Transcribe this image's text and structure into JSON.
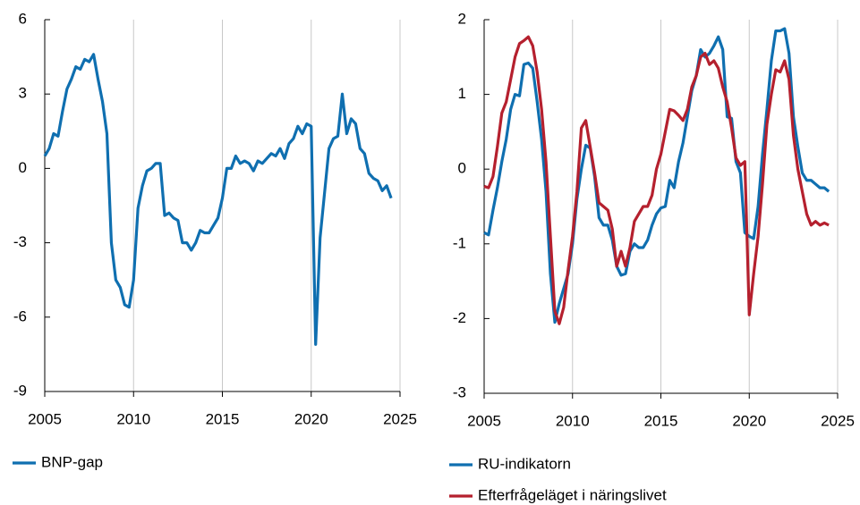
{
  "chart_data": [
    {
      "type": "line",
      "x": [
        2005,
        2005.25,
        2005.5,
        2005.75,
        2006,
        2006.25,
        2006.5,
        2006.75,
        2007,
        2007.25,
        2007.5,
        2007.75,
        2008,
        2008.25,
        2008.5,
        2008.75,
        2009,
        2009.25,
        2009.5,
        2009.75,
        2010,
        2010.25,
        2010.5,
        2010.75,
        2011,
        2011.25,
        2011.5,
        2011.75,
        2012,
        2012.25,
        2012.5,
        2012.75,
        2013,
        2013.25,
        2013.5,
        2013.75,
        2014,
        2014.25,
        2014.5,
        2014.75,
        2015,
        2015.25,
        2015.5,
        2015.75,
        2016,
        2016.25,
        2016.5,
        2016.75,
        2017,
        2017.25,
        2017.5,
        2017.75,
        2018,
        2018.25,
        2018.5,
        2018.75,
        2019,
        2019.25,
        2019.5,
        2019.75,
        2020,
        2020.25,
        2020.5,
        2020.75,
        2021,
        2021.25,
        2021.5,
        2021.75,
        2022,
        2022.25,
        2022.5,
        2022.75,
        2023,
        2023.25,
        2023.5,
        2023.75,
        2024,
        2024.25,
        2024.5
      ],
      "series": [
        {
          "name": "BNP-gap",
          "color": "#0f6fb0",
          "values": [
            0.5,
            0.8,
            1.4,
            1.3,
            2.3,
            3.2,
            3.6,
            4.1,
            4.0,
            4.4,
            4.3,
            4.6,
            3.6,
            2.7,
            1.4,
            -3.0,
            -4.5,
            -4.8,
            -5.5,
            -5.6,
            -4.5,
            -1.6,
            -0.7,
            -0.1,
            0.0,
            0.2,
            0.2,
            -1.9,
            -1.8,
            -2.0,
            -2.1,
            -3.0,
            -3.0,
            -3.3,
            -3.0,
            -2.5,
            -2.6,
            -2.6,
            -2.3,
            -2.0,
            -1.2,
            0.0,
            0.0,
            0.5,
            0.2,
            0.3,
            0.2,
            -0.1,
            0.3,
            0.2,
            0.4,
            0.6,
            0.5,
            0.8,
            0.4,
            1.0,
            1.2,
            1.7,
            1.4,
            1.8,
            1.7,
            -7.1,
            -2.8,
            -1.0,
            0.8,
            1.2,
            1.3,
            3.0,
            1.4,
            2.0,
            1.8,
            0.8,
            0.6,
            -0.2,
            -0.4,
            -0.5,
            -0.9,
            -0.7,
            -1.2
          ]
        }
      ],
      "xlim": [
        2005,
        2025
      ],
      "xticks": [
        2005,
        2010,
        2015,
        2020,
        2025
      ],
      "ylim": [
        -9,
        6
      ],
      "yticks": [
        -9,
        -6,
        -3,
        0,
        3,
        6
      ],
      "grid": true
    },
    {
      "type": "line",
      "x": [
        2005,
        2005.25,
        2005.5,
        2005.75,
        2006,
        2006.25,
        2006.5,
        2006.75,
        2007,
        2007.25,
        2007.5,
        2007.75,
        2008,
        2008.25,
        2008.5,
        2008.75,
        2009,
        2009.25,
        2009.5,
        2009.75,
        2010,
        2010.25,
        2010.5,
        2010.75,
        2011,
        2011.25,
        2011.5,
        2011.75,
        2012,
        2012.25,
        2012.5,
        2012.75,
        2013,
        2013.25,
        2013.5,
        2013.75,
        2014,
        2014.25,
        2014.5,
        2014.75,
        2015,
        2015.25,
        2015.5,
        2015.75,
        2016,
        2016.25,
        2016.5,
        2016.75,
        2017,
        2017.25,
        2017.5,
        2017.75,
        2018,
        2018.25,
        2018.5,
        2018.75,
        2019,
        2019.25,
        2019.5,
        2019.75,
        2020,
        2020.25,
        2020.5,
        2020.75,
        2021,
        2021.25,
        2021.5,
        2021.75,
        2022,
        2022.25,
        2022.5,
        2022.75,
        2023,
        2023.25,
        2023.5,
        2023.75,
        2024,
        2024.25,
        2024.5
      ],
      "series": [
        {
          "name": "RU-indikatorn",
          "color": "#0f6fb0",
          "values": [
            -0.85,
            -0.88,
            -0.55,
            -0.25,
            0.1,
            0.4,
            0.8,
            1.0,
            0.98,
            1.4,
            1.42,
            1.35,
            0.9,
            0.4,
            -0.3,
            -1.4,
            -2.05,
            -1.8,
            -1.6,
            -1.4,
            -1.0,
            -0.4,
            0.0,
            0.32,
            0.28,
            -0.1,
            -0.65,
            -0.75,
            -0.75,
            -0.95,
            -1.3,
            -1.42,
            -1.4,
            -1.1,
            -1.0,
            -1.05,
            -1.05,
            -0.95,
            -0.75,
            -0.6,
            -0.52,
            -0.5,
            -0.15,
            -0.25,
            0.1,
            0.35,
            0.7,
            1.05,
            1.25,
            1.6,
            1.5,
            1.55,
            1.65,
            1.77,
            1.6,
            0.7,
            0.68,
            0.1,
            -0.05,
            -0.85,
            -0.9,
            -0.93,
            -0.5,
            0.2,
            0.8,
            1.45,
            1.85,
            1.85,
            1.88,
            1.55,
            0.7,
            0.3,
            -0.05,
            -0.15,
            -0.15,
            -0.2,
            -0.25,
            -0.25,
            -0.3
          ]
        },
        {
          "name": "Efterfrågeläget i näringslivet",
          "color": "#b5202e",
          "values": [
            -0.23,
            -0.25,
            -0.1,
            0.3,
            0.75,
            0.9,
            1.2,
            1.5,
            1.68,
            1.72,
            1.77,
            1.65,
            1.3,
            0.8,
            0.1,
            -0.9,
            -1.9,
            -2.07,
            -1.85,
            -1.35,
            -0.9,
            -0.3,
            0.55,
            0.65,
            0.3,
            -0.05,
            -0.45,
            -0.5,
            -0.55,
            -0.8,
            -1.3,
            -1.1,
            -1.3,
            -1.05,
            -0.7,
            -0.6,
            -0.5,
            -0.5,
            -0.35,
            0.0,
            0.2,
            0.5,
            0.8,
            0.78,
            0.72,
            0.65,
            0.8,
            1.1,
            1.25,
            1.5,
            1.55,
            1.4,
            1.45,
            1.35,
            1.1,
            0.9,
            0.55,
            0.15,
            0.05,
            0.1,
            -1.95,
            -1.4,
            -0.9,
            -0.2,
            0.6,
            1.0,
            1.33,
            1.3,
            1.45,
            1.2,
            0.45,
            0.0,
            -0.3,
            -0.6,
            -0.75,
            -0.7,
            -0.75,
            -0.72,
            -0.75
          ]
        }
      ],
      "xlim": [
        2005,
        2025
      ],
      "xticks": [
        2005,
        2010,
        2015,
        2020,
        2025
      ],
      "ylim": [
        -3,
        2
      ],
      "yticks": [
        -3,
        -2,
        -1,
        0,
        1,
        2
      ],
      "grid": true
    }
  ]
}
